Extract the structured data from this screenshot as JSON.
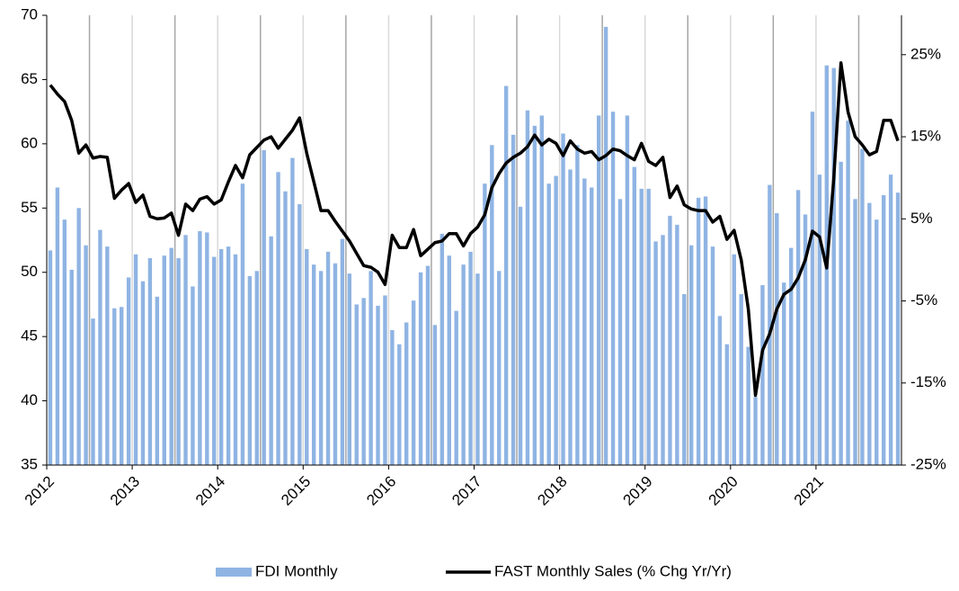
{
  "chart_data": {
    "type": "bar",
    "categories": [
      "2012",
      null,
      null,
      null,
      null,
      null,
      null,
      null,
      null,
      null,
      null,
      null,
      "2013",
      null,
      null,
      null,
      null,
      null,
      null,
      null,
      null,
      null,
      null,
      null,
      "2014",
      null,
      null,
      null,
      null,
      null,
      null,
      null,
      null,
      null,
      null,
      null,
      "2015",
      null,
      null,
      null,
      null,
      null,
      null,
      null,
      null,
      null,
      null,
      null,
      "2016",
      null,
      null,
      null,
      null,
      null,
      null,
      null,
      null,
      null,
      null,
      null,
      "2017",
      null,
      null,
      null,
      null,
      null,
      null,
      null,
      null,
      null,
      null,
      null,
      "2018",
      null,
      null,
      null,
      null,
      null,
      null,
      null,
      null,
      null,
      null,
      null,
      "2019",
      null,
      null,
      null,
      null,
      null,
      null,
      null,
      null,
      null,
      null,
      null,
      "2020",
      null,
      null,
      null,
      null,
      null,
      null,
      null,
      null,
      null,
      null,
      null,
      "2021",
      null,
      null,
      null,
      null,
      null,
      null,
      null,
      null,
      null,
      null,
      null
    ],
    "series": [
      {
        "name": "FDI Monthly",
        "type": "bar",
        "color": "#8fb4e3",
        "values": [
          51.7,
          56.6,
          54.1,
          50.2,
          55.0,
          52.1,
          46.4,
          53.3,
          52.0,
          47.2,
          47.3,
          49.6,
          51.4,
          49.3,
          51.1,
          48.1,
          51.3,
          51.9,
          51.1,
          52.9,
          48.9,
          53.2,
          53.1,
          51.2,
          51.8,
          52.0,
          51.4,
          56.9,
          49.7,
          50.1,
          59.5,
          52.8,
          57.8,
          56.3,
          58.9,
          55.3,
          51.8,
          50.6,
          50.1,
          51.6,
          50.7,
          52.6,
          49.9,
          47.5,
          48.0,
          50.1,
          47.4,
          48.2,
          45.5,
          44.4,
          46.1,
          47.8,
          50.0,
          50.5,
          45.9,
          53.0,
          51.3,
          47.0,
          50.6,
          51.6,
          49.9,
          56.9,
          59.9,
          50.1,
          64.5,
          60.7,
          55.1,
          62.6,
          61.4,
          62.2,
          56.9,
          57.5,
          60.8,
          58.0,
          59.9,
          57.3,
          56.6,
          62.2,
          69.1,
          62.5,
          55.7,
          62.2,
          58.2,
          56.5,
          56.5,
          52.4,
          52.9,
          54.4,
          53.7,
          48.3,
          52.1,
          55.8,
          55.9,
          52.0,
          46.6,
          44.4,
          51.4,
          48.3,
          44.2,
          40.3,
          49.0,
          56.8,
          54.6,
          49.2,
          51.9,
          56.4,
          54.5,
          62.5,
          57.6,
          66.1,
          65.9,
          58.6,
          61.8,
          55.7,
          59.6,
          55.4,
          54.1,
          56.0,
          57.6,
          56.2
        ]
      },
      {
        "name": "FAST Monthly Sales (% Chg Yr/Yr)",
        "type": "line",
        "axis": "y2",
        "color": "#000000",
        "values": [
          21.3,
          20.2,
          19.3,
          17,
          13,
          14,
          12.4,
          12.6,
          12.5,
          7.5,
          8.5,
          9.3,
          7,
          7.9,
          5.3,
          5,
          5.1,
          5.7,
          3,
          6.8,
          6,
          7.4,
          7.7,
          6.8,
          7.3,
          9.5,
          11.5,
          10,
          12.8,
          13.7,
          14.6,
          15,
          13.6,
          14.7,
          15.8,
          17.3,
          13,
          9.5,
          6,
          6,
          4.7,
          3.5,
          2.3,
          0.8,
          -0.7,
          -0.9,
          -1.5,
          -3,
          3,
          1.5,
          1.5,
          3.7,
          0.5,
          1.3,
          2.1,
          2.3,
          3.2,
          3.2,
          1.7,
          3.2,
          4,
          5.5,
          8.8,
          10.5,
          11.8,
          12.5,
          13,
          13.8,
          15.2,
          14,
          14.7,
          14.2,
          12.7,
          14.5,
          13.5,
          13,
          13.2,
          12.2,
          12.7,
          13.5,
          13.3,
          12.7,
          12.2,
          14.2,
          12,
          11.5,
          12.5,
          7.6,
          9,
          6.7,
          6.2,
          6,
          6,
          4.6,
          5.3,
          2.5,
          3.6,
          0,
          -6,
          -16.5,
          -11,
          -9,
          -6,
          -4.2,
          -3.6,
          -2.2,
          0,
          3.5,
          2.8,
          -1,
          10,
          24,
          18,
          15,
          14,
          12.8,
          13.2,
          17,
          17,
          14.5
        ]
      }
    ],
    "ylim": [
      35,
      70
    ],
    "yticks": [
      35,
      40,
      45,
      50,
      55,
      60,
      65,
      70
    ],
    "y2lim": [
      -25,
      29.8
    ],
    "y2ticks": [
      {
        "value": -25,
        "label": "-25%"
      },
      {
        "value": -15,
        "label": "-15%"
      },
      {
        "value": -5,
        "label": "-5%"
      },
      {
        "value": 5,
        "label": "5%"
      },
      {
        "value": 15,
        "label": "15%"
      },
      {
        "value": 25,
        "label": "25%"
      }
    ],
    "grid": true
  }
}
